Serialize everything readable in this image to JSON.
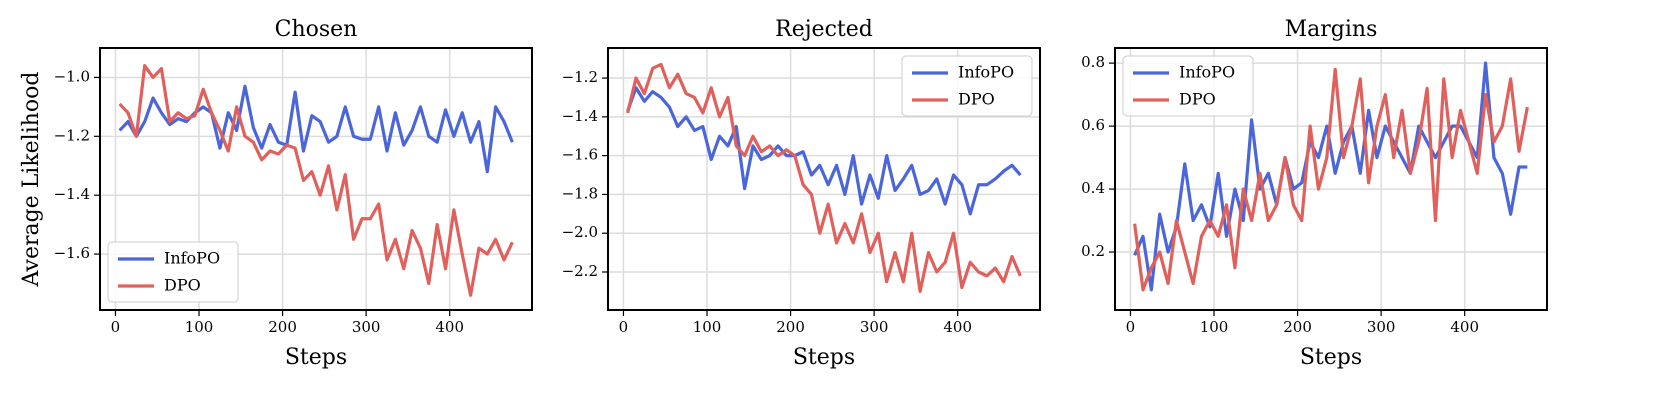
{
  "chart_data": [
    {
      "type": "line",
      "title": "Chosen",
      "xlabel": "Steps",
      "ylabel": "Average Likelihood",
      "legend": "lower left",
      "grid": true,
      "xlim": [
        -18.5,
        498.5
      ],
      "ylim": [
        -1.79,
        -0.9
      ],
      "xticks": [
        0,
        100,
        200,
        300,
        400
      ],
      "yticks": [
        {
          "value": -1.6,
          "label": "−1.6"
        },
        {
          "value": -1.4,
          "label": "−1.4"
        },
        {
          "value": -1.2,
          "label": "−1.2"
        },
        {
          "value": -1.0,
          "label": "−1.0"
        }
      ],
      "x": [
        5,
        15,
        25,
        35,
        45,
        55,
        65,
        75,
        85,
        95,
        105,
        115,
        125,
        135,
        145,
        155,
        165,
        175,
        185,
        195,
        205,
        215,
        225,
        235,
        245,
        255,
        265,
        275,
        285,
        295,
        305,
        315,
        325,
        335,
        345,
        355,
        365,
        375,
        385,
        395,
        405,
        415,
        425,
        435,
        445,
        455,
        465,
        475
      ],
      "series": [
        {
          "name": "InfoPO",
          "color": "#4a66d8",
          "values": [
            -1.18,
            -1.15,
            -1.2,
            -1.15,
            -1.07,
            -1.12,
            -1.16,
            -1.14,
            -1.15,
            -1.12,
            -1.1,
            -1.12,
            -1.24,
            -1.12,
            -1.18,
            -1.03,
            -1.17,
            -1.24,
            -1.16,
            -1.22,
            -1.23,
            -1.05,
            -1.25,
            -1.13,
            -1.15,
            -1.22,
            -1.2,
            -1.1,
            -1.2,
            -1.21,
            -1.21,
            -1.1,
            -1.25,
            -1.12,
            -1.23,
            -1.18,
            -1.1,
            -1.2,
            -1.22,
            -1.11,
            -1.2,
            -1.12,
            -1.22,
            -1.15,
            -1.32,
            -1.1,
            -1.15,
            -1.22
          ]
        },
        {
          "name": "DPO",
          "color": "#e0605c",
          "values": [
            -1.09,
            -1.12,
            -1.2,
            -0.96,
            -1.0,
            -0.97,
            -1.15,
            -1.12,
            -1.14,
            -1.13,
            -1.04,
            -1.12,
            -1.18,
            -1.25,
            -1.1,
            -1.2,
            -1.22,
            -1.28,
            -1.25,
            -1.26,
            -1.23,
            -1.24,
            -1.35,
            -1.32,
            -1.4,
            -1.3,
            -1.45,
            -1.33,
            -1.55,
            -1.48,
            -1.48,
            -1.43,
            -1.62,
            -1.55,
            -1.65,
            -1.52,
            -1.58,
            -1.7,
            -1.5,
            -1.65,
            -1.45,
            -1.6,
            -1.74,
            -1.58,
            -1.6,
            -1.55,
            -1.62,
            -1.56
          ]
        }
      ]
    },
    {
      "type": "line",
      "title": "Rejected",
      "xlabel": "Steps",
      "legend": "upper right",
      "grid": true,
      "xlim": [
        -18.5,
        498.5
      ],
      "ylim": [
        -2.396,
        -1.045
      ],
      "xticks": [
        0,
        100,
        200,
        300,
        400
      ],
      "yticks": [
        {
          "value": -2.2,
          "label": "−2.2"
        },
        {
          "value": -2.0,
          "label": "−2.0"
        },
        {
          "value": -1.8,
          "label": "−1.8"
        },
        {
          "value": -1.6,
          "label": "−1.6"
        },
        {
          "value": -1.4,
          "label": "−1.4"
        },
        {
          "value": -1.2,
          "label": "−1.2"
        }
      ],
      "x": [
        5,
        15,
        25,
        35,
        45,
        55,
        65,
        75,
        85,
        95,
        105,
        115,
        125,
        135,
        145,
        155,
        165,
        175,
        185,
        195,
        205,
        215,
        225,
        235,
        245,
        255,
        265,
        275,
        285,
        295,
        305,
        315,
        325,
        335,
        345,
        355,
        365,
        375,
        385,
        395,
        405,
        415,
        425,
        435,
        445,
        455,
        465,
        475
      ],
      "series": [
        {
          "name": "InfoPO",
          "color": "#4a66d8",
          "values": [
            -1.37,
            -1.25,
            -1.32,
            -1.27,
            -1.3,
            -1.35,
            -1.45,
            -1.4,
            -1.47,
            -1.45,
            -1.62,
            -1.5,
            -1.55,
            -1.45,
            -1.77,
            -1.55,
            -1.62,
            -1.6,
            -1.55,
            -1.6,
            -1.6,
            -1.58,
            -1.7,
            -1.65,
            -1.75,
            -1.65,
            -1.8,
            -1.6,
            -1.85,
            -1.7,
            -1.82,
            -1.6,
            -1.78,
            -1.72,
            -1.65,
            -1.8,
            -1.78,
            -1.72,
            -1.85,
            -1.7,
            -1.75,
            -1.9,
            -1.75,
            -1.75,
            -1.72,
            -1.68,
            -1.65,
            -1.7
          ]
        },
        {
          "name": "DPO",
          "color": "#e0605c",
          "values": [
            -1.38,
            -1.2,
            -1.28,
            -1.15,
            -1.13,
            -1.25,
            -1.18,
            -1.28,
            -1.3,
            -1.38,
            -1.25,
            -1.4,
            -1.3,
            -1.55,
            -1.6,
            -1.5,
            -1.58,
            -1.55,
            -1.6,
            -1.57,
            -1.6,
            -1.75,
            -1.8,
            -2.0,
            -1.85,
            -2.05,
            -1.95,
            -2.05,
            -1.9,
            -2.1,
            -2.0,
            -2.25,
            -2.1,
            -2.25,
            -2.0,
            -2.3,
            -2.1,
            -2.2,
            -2.15,
            -2.0,
            -2.28,
            -2.15,
            -2.2,
            -2.22,
            -2.18,
            -2.25,
            -2.12,
            -2.22
          ]
        }
      ]
    },
    {
      "type": "line",
      "title": "Margins",
      "xlabel": "Steps",
      "legend": "upper left",
      "grid": true,
      "xlim": [
        -18.5,
        498.5
      ],
      "ylim": [
        0.016,
        0.848
      ],
      "xticks": [
        0,
        100,
        200,
        300,
        400
      ],
      "yticks": [
        0.2,
        0.4,
        0.6,
        0.8
      ],
      "x": [
        5,
        15,
        25,
        35,
        45,
        55,
        65,
        75,
        85,
        95,
        105,
        115,
        125,
        135,
        145,
        155,
        165,
        175,
        185,
        195,
        205,
        215,
        225,
        235,
        245,
        255,
        265,
        275,
        285,
        295,
        305,
        315,
        325,
        335,
        345,
        355,
        365,
        375,
        385,
        395,
        405,
        415,
        425,
        435,
        445,
        455,
        465,
        475
      ],
      "series": [
        {
          "name": "InfoPO",
          "color": "#4a66d8",
          "values": [
            0.19,
            0.25,
            0.08,
            0.32,
            0.2,
            0.28,
            0.48,
            0.3,
            0.35,
            0.28,
            0.45,
            0.25,
            0.4,
            0.3,
            0.62,
            0.4,
            0.45,
            0.35,
            0.5,
            0.4,
            0.42,
            0.55,
            0.5,
            0.6,
            0.45,
            0.55,
            0.6,
            0.45,
            0.65,
            0.5,
            0.6,
            0.55,
            0.5,
            0.45,
            0.6,
            0.55,
            0.5,
            0.55,
            0.6,
            0.6,
            0.55,
            0.5,
            0.8,
            0.5,
            0.45,
            0.32,
            0.47,
            0.47
          ]
        },
        {
          "name": "DPO",
          "color": "#e0605c",
          "values": [
            0.29,
            0.08,
            0.15,
            0.2,
            0.1,
            0.3,
            0.2,
            0.1,
            0.25,
            0.3,
            0.25,
            0.35,
            0.15,
            0.4,
            0.3,
            0.45,
            0.3,
            0.35,
            0.5,
            0.35,
            0.3,
            0.6,
            0.4,
            0.5,
            0.78,
            0.5,
            0.6,
            0.75,
            0.42,
            0.6,
            0.7,
            0.5,
            0.65,
            0.45,
            0.55,
            0.72,
            0.3,
            0.75,
            0.5,
            0.65,
            0.55,
            0.45,
            0.7,
            0.55,
            0.6,
            0.75,
            0.52,
            0.66
          ]
        }
      ]
    }
  ]
}
